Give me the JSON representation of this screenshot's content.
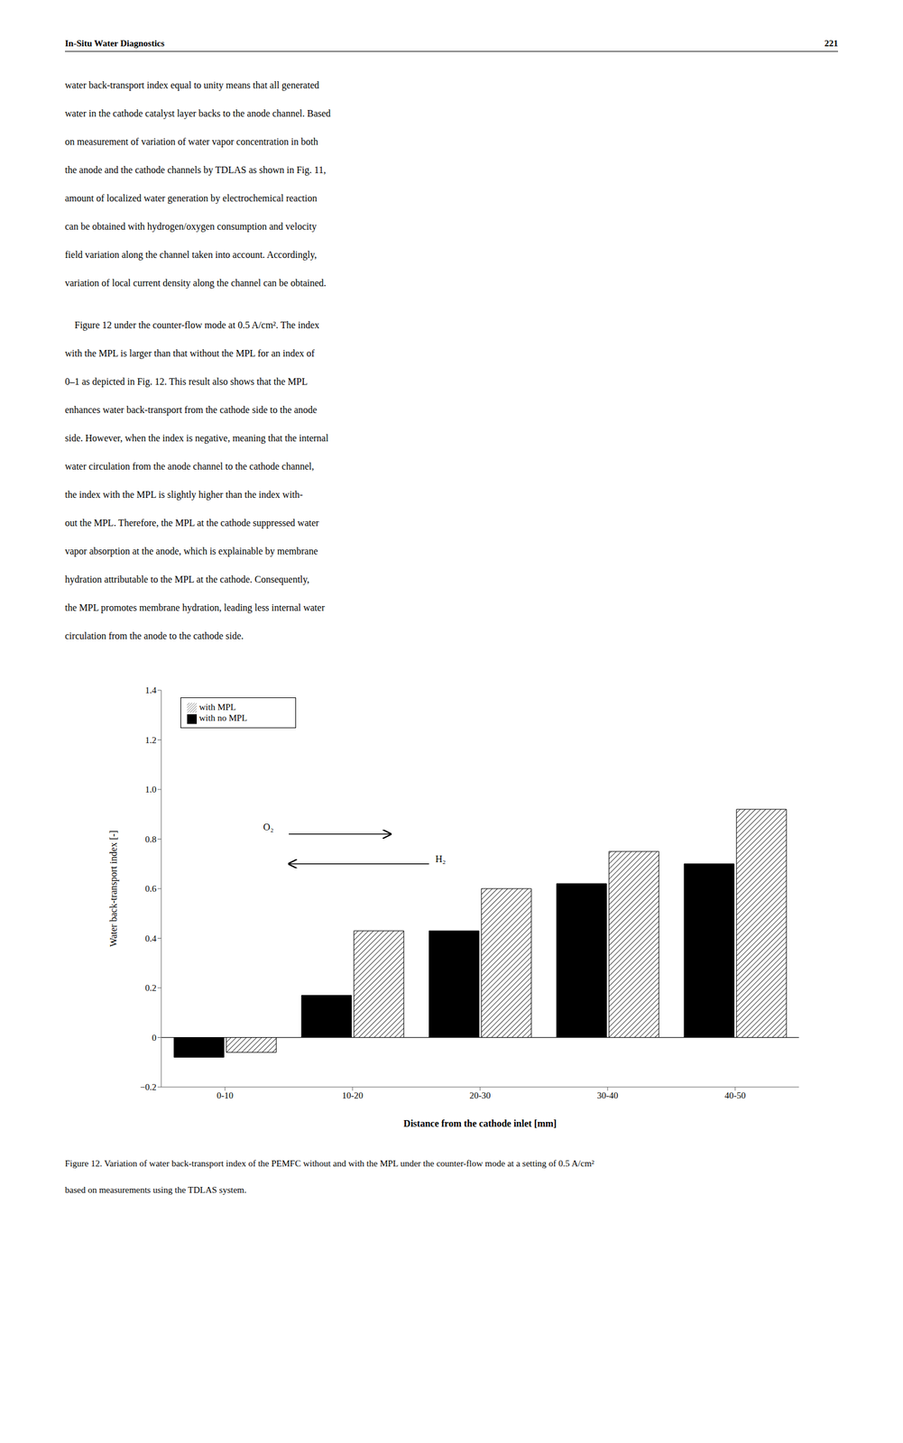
{
  "header": [
    "In-Situ Water Diagnostics",
    "221"
  ],
  "body_text": [
    [
      "water back-transport index equal to unity means that all generated",
      "water in the cathode catalyst layer backs to the anode channel. Based",
      "on measurement of variation of water vapor concentration in both",
      "the anode and the cathode channels by TDLAS as shown in Fig. 11,",
      "amount of localized water generation by electrochemical reaction",
      "can be obtained with hydrogen/oxygen consumption and velocity",
      "field variation along the channel taken into account. Accordingly,",
      "variation of local current density along the channel can be obtained."
    ],
    [
      "    Figure 12 under the counter-flow mode at 0.5 A/cm². The index",
      "with the MPL is larger than that without the MPL for an index of",
      "0–1 as depicted in Fig. 12. This result also shows that the MPL",
      "enhances water back-transport from the cathode side to the anode",
      "side. However, when the index is negative, meaning that the internal",
      "water circulation from the anode channel to the cathode channel,",
      "the index with the MPL is slightly higher than the index with-",
      "out the MPL. Therefore, the MPL at the cathode suppressed water",
      "vapor absorption at the anode, which is explainable by membrane",
      "hydration attributable to the MPL at the cathode. Consequently,",
      "the MPL promotes membrane hydration, leading less internal water",
      "circulation from the anode to the cathode side."
    ]
  ],
  "chart_data": {
    "type": "bar",
    "title": "Figure 12. Variation of water back-transport index of the PEMFC without and with the MPL under the counter-flow mode at a setting of 0.5 A/cm² based on measurements using the TDLAS system.",
    "xlabel": "Distance from the cathode inlet [mm]",
    "ylabel": "Water back-transport index [-]",
    "categories": [
      "0-10",
      "10-20",
      "20-30",
      "30-40",
      "40-50"
    ],
    "series": [
      {
        "name": "with no MPL",
        "color": "#000000",
        "values": [
          -0.08,
          0.17,
          0.43,
          0.62,
          0.7
        ]
      },
      {
        "name": "with MPL",
        "color": "#ffffff",
        "values": [
          -0.06,
          0.43,
          0.6,
          0.75,
          0.92
        ]
      }
    ],
    "ylim": [
      -0.2,
      1.4
    ],
    "yticks": [
      {
        "value": -0.2,
        "label": "−0.2"
      },
      0,
      0.2,
      0.4,
      0.6,
      {
        "value": 1.0,
        "label": "1.0"
      },
      0.8,
      1.2,
      1.4
    ],
    "annotations": [
      "O₂",
      "H₂"
    ],
    "legend": "upper left",
    "grid": false
  }
}
